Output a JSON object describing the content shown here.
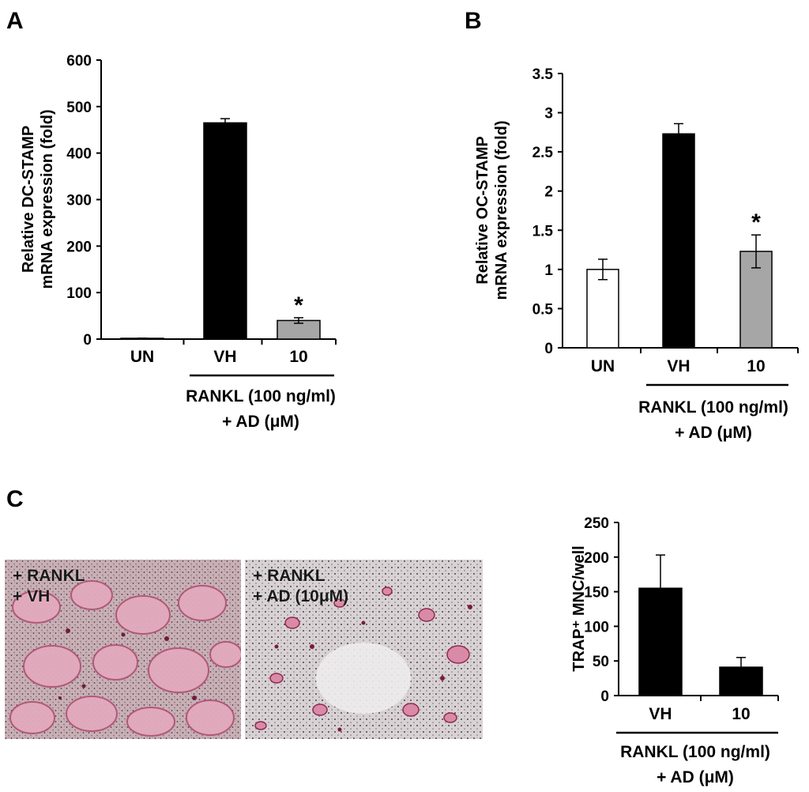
{
  "panels": {
    "A": "A",
    "B": "B",
    "C": "C"
  },
  "micrographs": [
    {
      "line1": "+ RANKL",
      "line2": "+ VH"
    },
    {
      "line1": "+ RANKL",
      "line2": "+ AD (10μM)"
    }
  ],
  "chart_data": [
    {
      "type": "bar",
      "panel": "A",
      "categories": [
        "UN",
        "VH",
        "10"
      ],
      "values": [
        1,
        465,
        40
      ],
      "errors": [
        1,
        9,
        6
      ],
      "colors": [
        "#ffffff",
        "#000000",
        "#a6a6a6"
      ],
      "significance": [
        "",
        "",
        "*"
      ],
      "ylabel_line1": "Relative DC-STAMP",
      "ylabel_line2": "mRNA expression  (fold)",
      "ylim": [
        0,
        600
      ],
      "yticks": [
        "0",
        "100",
        "200",
        "300",
        "400",
        "500",
        "600"
      ],
      "group_label_line1": "RANKL (100 ng/ml)",
      "group_label_line2": "+ AD (μM)"
    },
    {
      "type": "bar",
      "panel": "B",
      "categories": [
        "UN",
        "VH",
        "10"
      ],
      "values": [
        1.0,
        2.73,
        1.23
      ],
      "errors": [
        0.13,
        0.13,
        0.21
      ],
      "colors": [
        "#ffffff",
        "#000000",
        "#a6a6a6"
      ],
      "significance": [
        "",
        "",
        "*"
      ],
      "ylabel_line1": "Relative OC-STAMP",
      "ylabel_line2": "mRNA expression  (fold)",
      "ylim": [
        0,
        3.5
      ],
      "yticks": [
        "0",
        "0.5",
        "1",
        "1.5",
        "2",
        "2.5",
        "3",
        "3.5"
      ],
      "group_label_line1": "RANKL (100 ng/ml)",
      "group_label_line2": "+ AD (μM)"
    },
    {
      "type": "bar",
      "panel": "C",
      "categories": [
        "VH",
        "10"
      ],
      "values": [
        155,
        41
      ],
      "errors": [
        48,
        14
      ],
      "colors": [
        "#000000",
        "#000000"
      ],
      "significance": [
        "",
        ""
      ],
      "ylabel_line1": "TRAP⁺ MNC/well",
      "ylabel_line2": "",
      "ylim": [
        0,
        250
      ],
      "yticks": [
        "0",
        "50",
        "100",
        "150",
        "200",
        "250"
      ],
      "group_label_line1": "RANKL (100 ng/ml)",
      "group_label_line2": "+ AD (μM)"
    }
  ]
}
